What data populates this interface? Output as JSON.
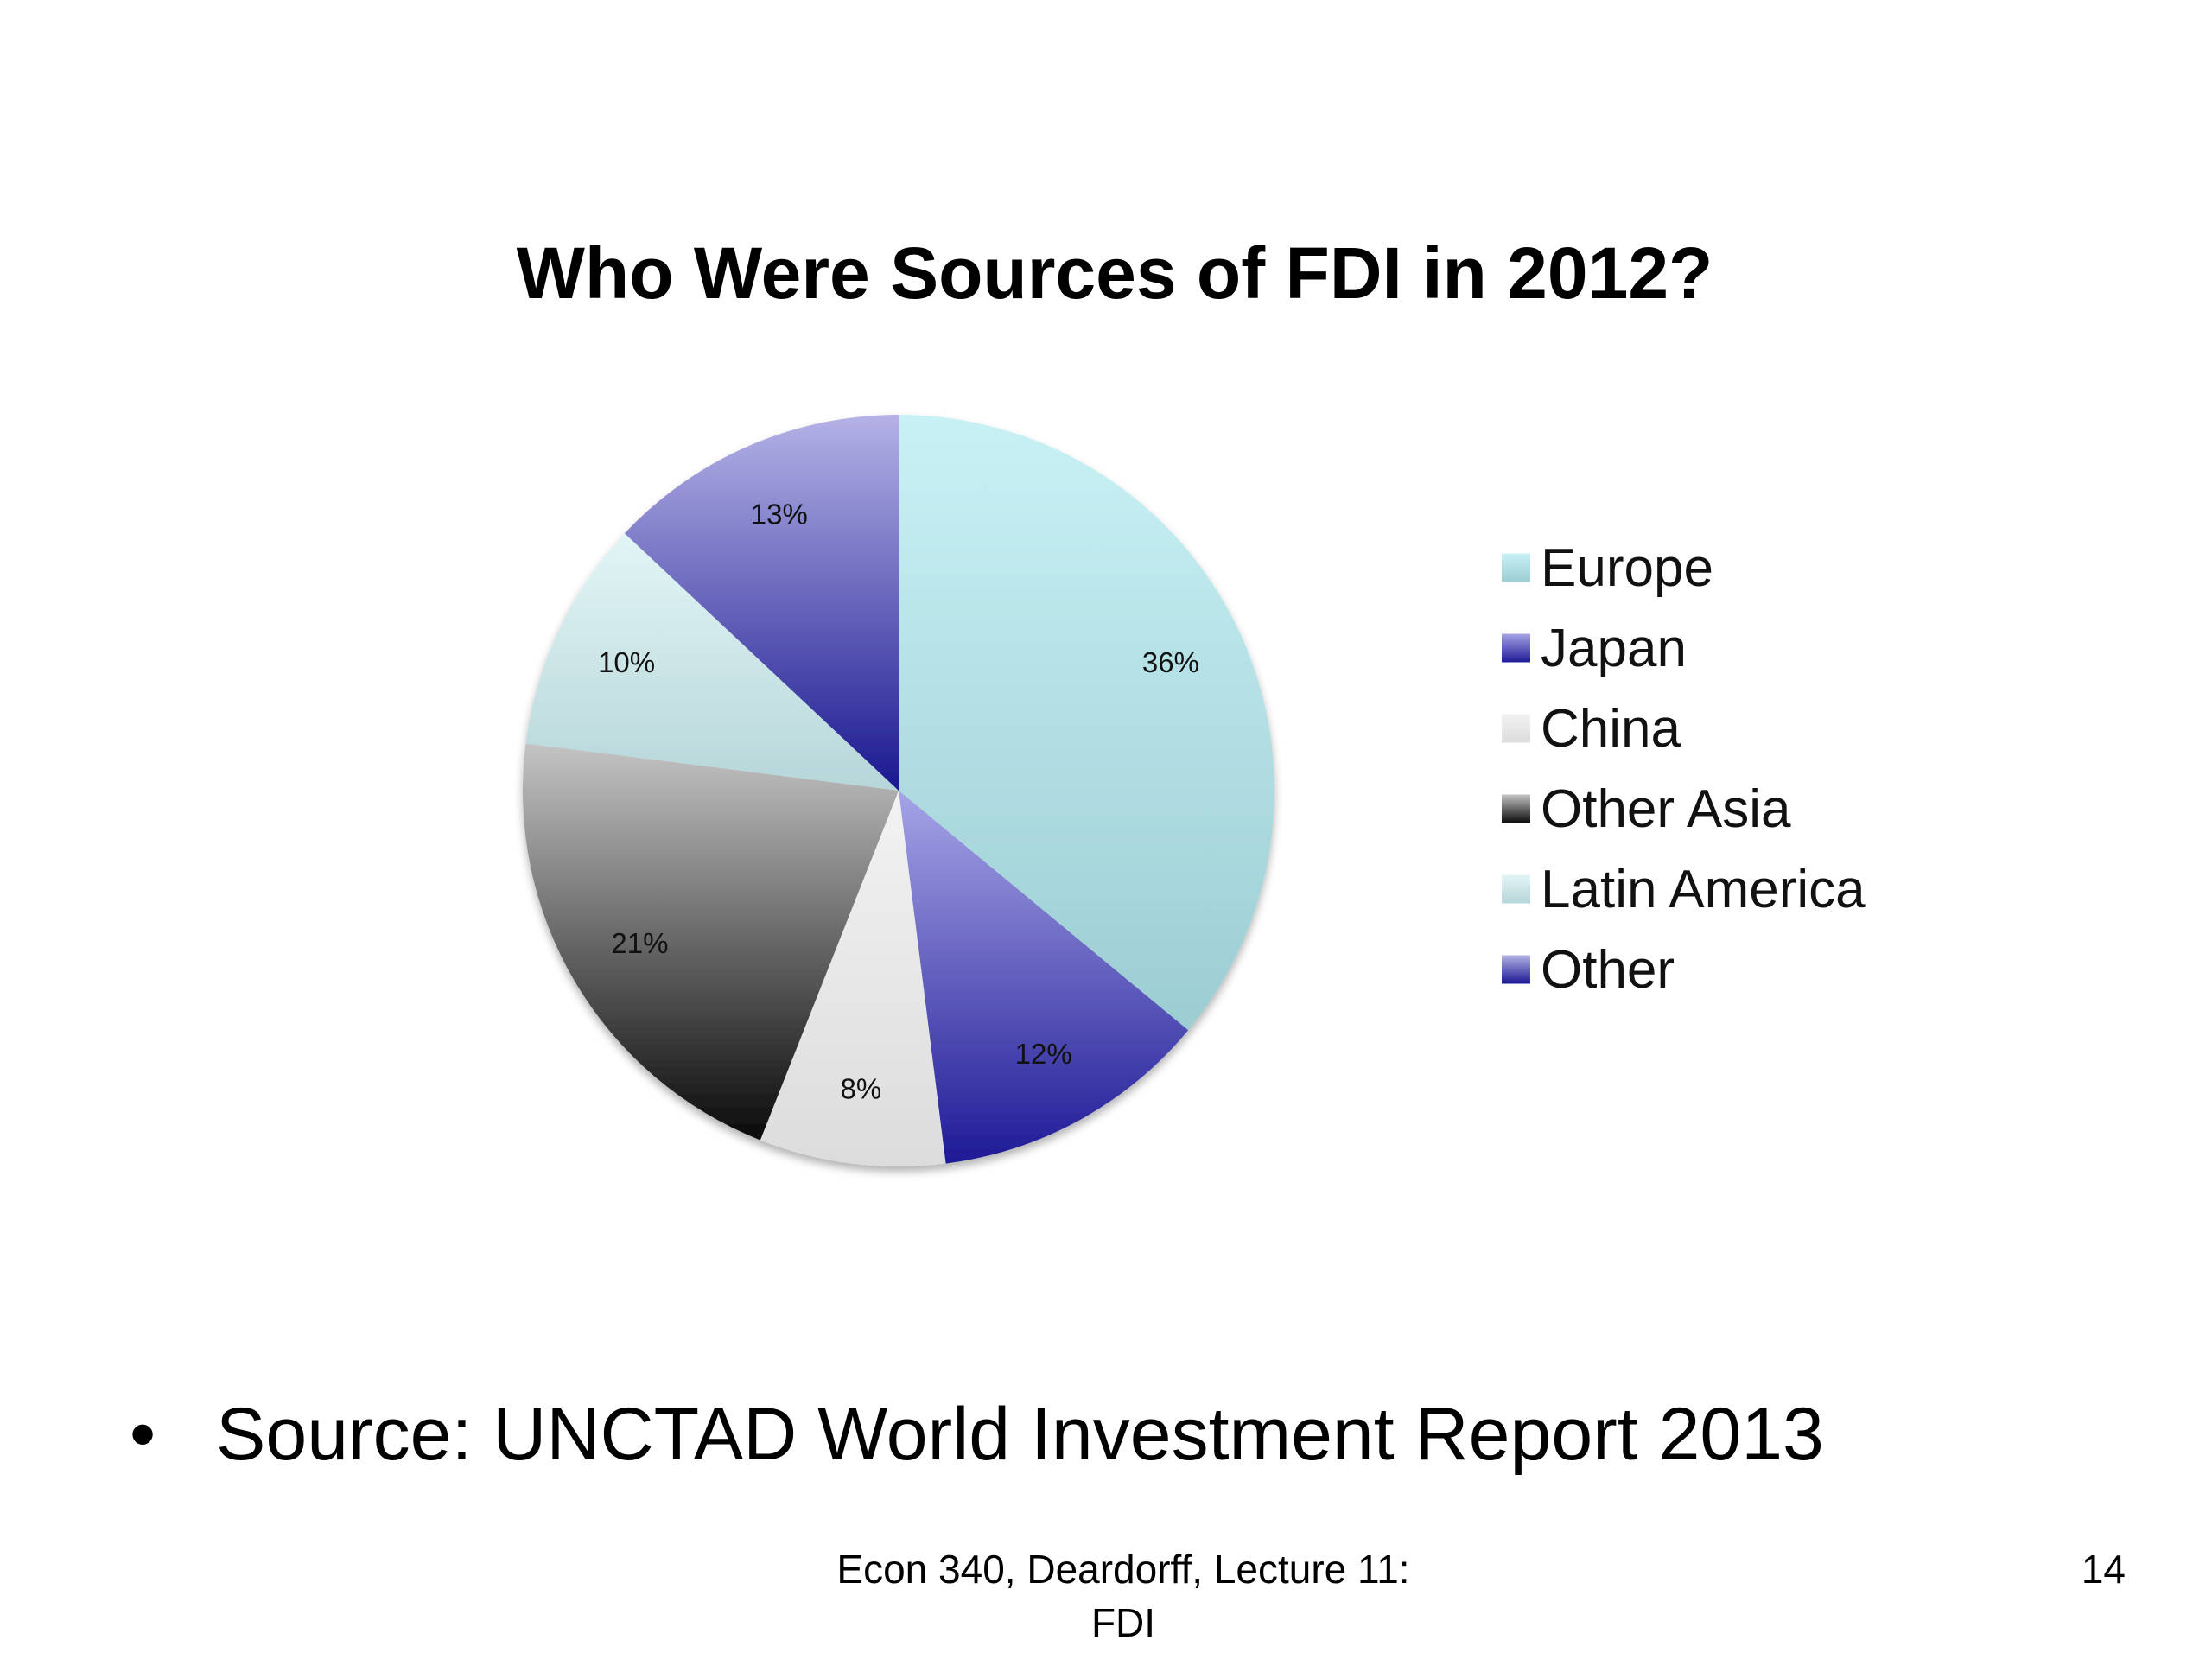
{
  "chart_data": {
    "type": "pie",
    "title": "Who Were Sources of FDI in 2012?",
    "categories": [
      "Europe",
      "Japan",
      "China",
      "Other Asia",
      "Latin America",
      "Other"
    ],
    "values": [
      36,
      12,
      8,
      21,
      10,
      13
    ],
    "labels": [
      "36%",
      "12%",
      "8%",
      "21%",
      "10%",
      "13%"
    ],
    "colors": [
      "#b4e0e6",
      "#4a4ab0",
      "#e9e9e9",
      "#6a6a6a",
      "#cde8ea",
      "#6e6cbc"
    ],
    "gradients": [
      [
        "#c8f1f5",
        "#9ccdd3"
      ],
      [
        "#a6a4e6",
        "#1e1a96"
      ],
      [
        "#f2f2f2",
        "#dcdcdc"
      ],
      [
        "#c4c4c4",
        "#0a0a0a"
      ],
      [
        "#e2f5f6",
        "#b6d6d9"
      ],
      [
        "#b4b2e6",
        "#1a1890"
      ]
    ],
    "legend_position": "right",
    "start": "top",
    "direction": "clockwise"
  },
  "bullets": [
    {
      "symbol": "•",
      "text": "Source:  UNCTAD World Investment Report 2013"
    }
  ],
  "footer": {
    "line1": "Econ 340, Deardorff, Lecture 11:",
    "line2": "FDI",
    "page_number": "14"
  }
}
